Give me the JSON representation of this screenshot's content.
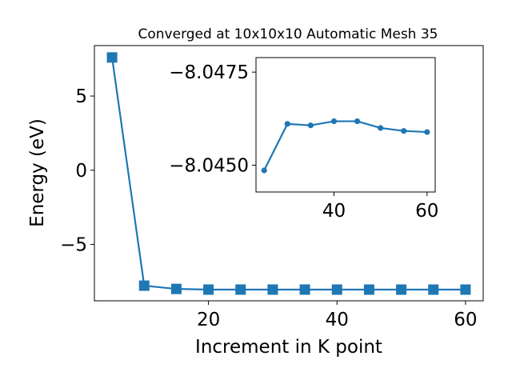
{
  "chart_data": [
    {
      "type": "line",
      "title": "Converged at 10x10x10 Automatic Mesh 35",
      "xlabel": "Increment in K point",
      "ylabel": "Energy (eV)",
      "xlim": [
        2.25,
        62.75
      ],
      "ylim": [
        -8.8,
        8.4
      ],
      "x_ticks": [
        20,
        40,
        60
      ],
      "x_tick_labels": [
        "20",
        "40",
        "60"
      ],
      "y_ticks": [
        -5,
        0,
        5
      ],
      "y_tick_labels": [
        "−5",
        "0",
        "5"
      ],
      "grid": false,
      "marker": "square",
      "color": "#1f77b4",
      "series": [
        {
          "x": [
            5,
            10,
            15,
            20,
            25,
            30,
            35,
            40,
            45,
            50,
            55,
            60
          ],
          "y": [
            7.6,
            -7.78,
            -8.0,
            -8.045,
            -8.045,
            -8.045,
            -8.045,
            -8.045,
            -8.045,
            -8.045,
            -8.045,
            -8.045
          ]
        }
      ]
    },
    {
      "type": "line",
      "inset": true,
      "xlim": [
        23.25,
        61.75
      ],
      "ylim": [
        -8.04428,
        -8.04789
      ],
      "x_ticks": [
        40,
        60
      ],
      "x_tick_labels": [
        "40",
        "60"
      ],
      "y_ticks": [
        -8.045,
        -8.0475
      ],
      "y_tick_labels": [
        "−8.0450",
        "−8.0475"
      ],
      "grid": false,
      "marker": "circle",
      "color": "#1f77b4",
      "series": [
        {
          "x": [
            25,
            30,
            35,
            40,
            45,
            50,
            55,
            60
          ],
          "y": [
            -8.04486,
            -8.04611,
            -8.04607,
            -8.04618,
            -8.04618,
            -8.046,
            -8.04592,
            -8.04589
          ]
        }
      ]
    }
  ]
}
